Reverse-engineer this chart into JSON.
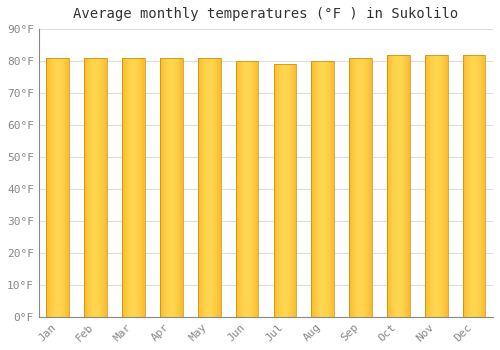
{
  "title": "Average monthly temperatures (°F ) in Sukolilo",
  "months": [
    "Jan",
    "Feb",
    "Mar",
    "Apr",
    "May",
    "Jun",
    "Jul",
    "Aug",
    "Sep",
    "Oct",
    "Nov",
    "Dec"
  ],
  "values": [
    81,
    81,
    81,
    81,
    81,
    80,
    79,
    80,
    81,
    82,
    82,
    82
  ],
  "ylim": [
    0,
    90
  ],
  "yticks": [
    0,
    10,
    20,
    30,
    40,
    50,
    60,
    70,
    80,
    90
  ],
  "bar_color_left": "#F5A800",
  "bar_color_right": "#FFD060",
  "bar_color_bottom": "#F5A800",
  "bar_color_top": "#FFD060",
  "background_color": "#FFFFFF",
  "grid_color": "#DDDDDD",
  "title_fontsize": 10,
  "tick_fontsize": 8,
  "bar_width": 0.6
}
